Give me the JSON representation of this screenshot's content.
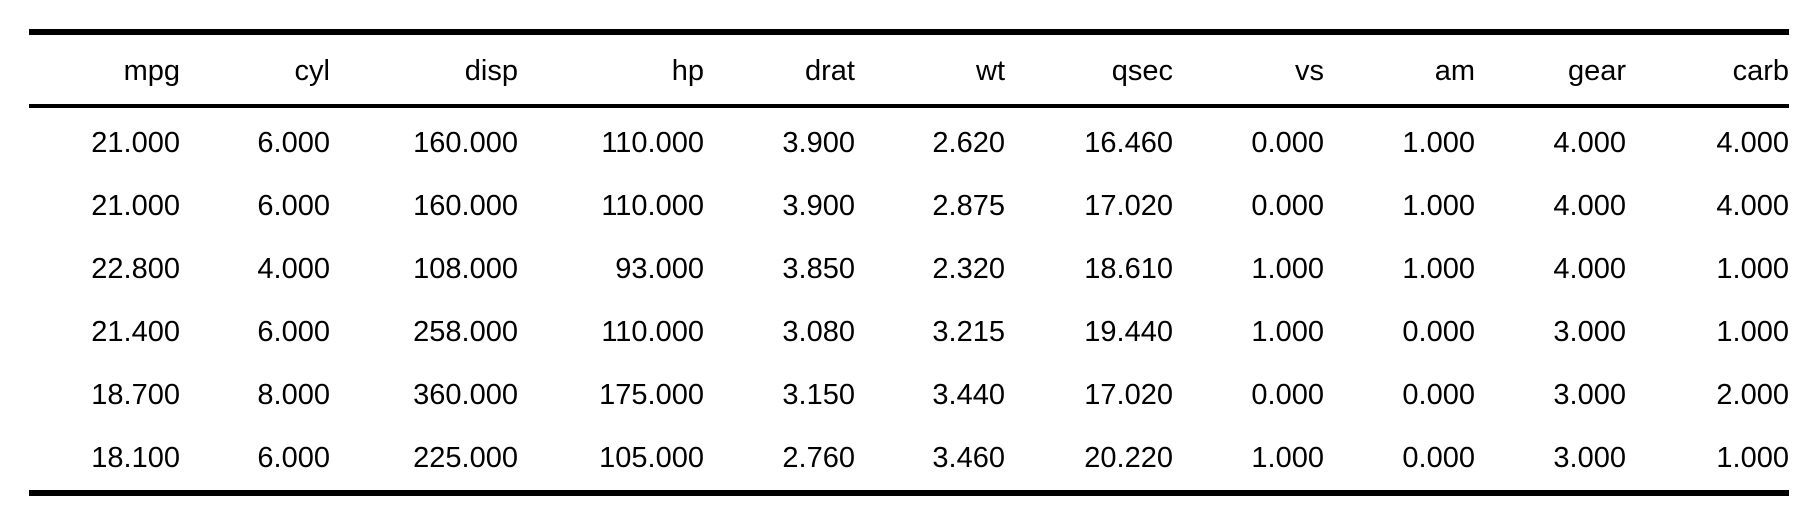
{
  "table": {
    "columns": [
      "mpg",
      "cyl",
      "disp",
      "hp",
      "drat",
      "wt",
      "qsec",
      "vs",
      "am",
      "gear",
      "carb"
    ],
    "rows": [
      [
        "21.000",
        "6.000",
        "160.000",
        "110.000",
        "3.900",
        "2.620",
        "16.460",
        "0.000",
        "1.000",
        "4.000",
        "4.000"
      ],
      [
        "21.000",
        "6.000",
        "160.000",
        "110.000",
        "3.900",
        "2.875",
        "17.020",
        "0.000",
        "1.000",
        "4.000",
        "4.000"
      ],
      [
        "22.800",
        "4.000",
        "108.000",
        "93.000",
        "3.850",
        "2.320",
        "18.610",
        "1.000",
        "1.000",
        "4.000",
        "1.000"
      ],
      [
        "21.400",
        "6.000",
        "258.000",
        "110.000",
        "3.080",
        "3.215",
        "19.440",
        "1.000",
        "0.000",
        "3.000",
        "1.000"
      ],
      [
        "18.700",
        "8.000",
        "360.000",
        "175.000",
        "3.150",
        "3.440",
        "17.020",
        "0.000",
        "0.000",
        "3.000",
        "2.000"
      ],
      [
        "18.100",
        "6.000",
        "225.000",
        "105.000",
        "2.760",
        "3.460",
        "20.220",
        "1.000",
        "0.000",
        "3.000",
        "1.000"
      ]
    ]
  }
}
